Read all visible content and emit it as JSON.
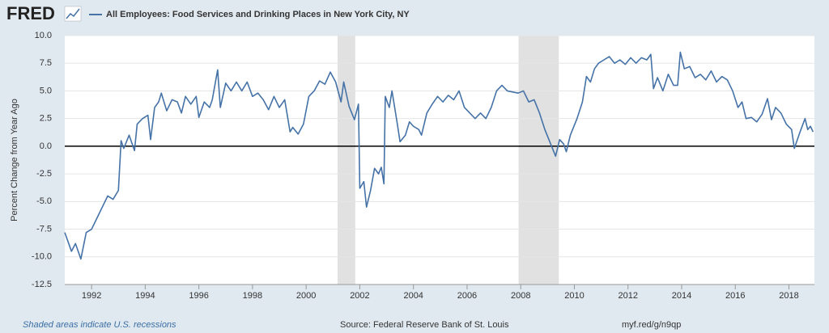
{
  "chart_data": {
    "type": "line",
    "brand": "FRED",
    "y_label": "Percent Change from Year Ago",
    "note": "Shaded areas indicate U.S. recessions",
    "source": "Source: Federal Reserve Bank of St. Louis",
    "link": "myf.red/g/n9qp",
    "xlim": [
      1991.0,
      2018.95
    ],
    "ylim": [
      -12.5,
      10
    ],
    "xticks": [
      1992,
      1994,
      1996,
      1998,
      2000,
      2002,
      2004,
      2006,
      2008,
      2010,
      2012,
      2014,
      2016,
      2018
    ],
    "yticks": [
      -12.5,
      {
        "value": -10,
        "label": "-10.0"
      },
      -7.5,
      {
        "value": -5,
        "label": "-5.0"
      },
      -2.5,
      {
        "value": 0,
        "label": "0.0"
      },
      2.5,
      {
        "value": 5,
        "label": "5.0"
      },
      7.5,
      {
        "value": 10,
        "label": "10.0"
      }
    ],
    "grid": true,
    "recessions": [
      [
        2001.17,
        2001.83
      ],
      [
        2007.92,
        2009.42
      ]
    ],
    "recession_color": "#e1e1e1",
    "x": [
      1991.0,
      1991.25,
      1991.4,
      1991.6,
      1991.8,
      1992.0,
      1992.2,
      1992.4,
      1992.6,
      1992.8,
      1993.0,
      1993.1,
      1993.2,
      1993.4,
      1993.6,
      1993.7,
      1993.9,
      1994.1,
      1994.2,
      1994.35,
      1994.5,
      1994.6,
      1994.8,
      1995.0,
      1995.2,
      1995.35,
      1995.5,
      1995.7,
      1995.9,
      1996.0,
      1996.2,
      1996.4,
      1996.5,
      1996.7,
      1996.8,
      1997.0,
      1997.2,
      1997.4,
      1997.6,
      1997.8,
      1998.0,
      1998.2,
      1998.4,
      1998.6,
      1998.8,
      1999.0,
      1999.2,
      1999.4,
      1999.5,
      1999.7,
      1999.9,
      2000.1,
      2000.3,
      2000.5,
      2000.7,
      2000.9,
      2001.1,
      2001.3,
      2001.4,
      2001.6,
      2001.8,
      2001.95,
      2002.0,
      2002.15,
      2002.25,
      2002.4,
      2002.55,
      2002.7,
      2002.8,
      2002.9,
      2002.95,
      2003.1,
      2003.2,
      2003.4,
      2003.5,
      2003.7,
      2003.85,
      2004.0,
      2004.2,
      2004.3,
      2004.5,
      2004.7,
      2004.9,
      2005.1,
      2005.3,
      2005.5,
      2005.7,
      2005.9,
      2006.1,
      2006.3,
      2006.5,
      2006.7,
      2006.9,
      2007.1,
      2007.3,
      2007.5,
      2007.7,
      2007.9,
      2008.1,
      2008.3,
      2008.5,
      2008.7,
      2008.9,
      2009.1,
      2009.3,
      2009.45,
      2009.6,
      2009.7,
      2009.85,
      2010.1,
      2010.3,
      2010.45,
      2010.6,
      2010.75,
      2010.9,
      2011.1,
      2011.3,
      2011.5,
      2011.7,
      2011.9,
      2012.1,
      2012.3,
      2012.5,
      2012.7,
      2012.85,
      2012.95,
      2013.1,
      2013.3,
      2013.5,
      2013.7,
      2013.85,
      2013.95,
      2014.1,
      2014.3,
      2014.5,
      2014.7,
      2014.9,
      2015.1,
      2015.3,
      2015.5,
      2015.7,
      2015.9,
      2016.1,
      2016.25,
      2016.4,
      2016.6,
      2016.8,
      2017.0,
      2017.2,
      2017.35,
      2017.5,
      2017.7,
      2017.9,
      2018.1,
      2018.2,
      2018.4,
      2018.6,
      2018.7,
      2018.8,
      2018.9
    ],
    "series": [
      {
        "name": "All Employees: Food Services and Drinking Places in New York City, NY",
        "color": "#4572a7",
        "values": [
          -7.8,
          -9.5,
          -8.8,
          -10.2,
          -7.8,
          -7.5,
          -6.5,
          -5.5,
          -4.5,
          -4.8,
          -4.0,
          0.5,
          -0.2,
          1.0,
          -0.4,
          2.0,
          2.5,
          2.8,
          0.6,
          3.5,
          4.0,
          4.8,
          3.2,
          4.2,
          4.0,
          3.0,
          4.5,
          3.8,
          4.5,
          2.6,
          4.0,
          3.5,
          4.2,
          6.9,
          3.5,
          5.7,
          5.0,
          5.8,
          5.0,
          5.8,
          4.5,
          4.8,
          4.2,
          3.3,
          4.5,
          3.5,
          4.2,
          1.3,
          1.7,
          1.1,
          2.0,
          4.5,
          5.0,
          5.9,
          5.6,
          6.7,
          5.8,
          4.0,
          5.8,
          3.6,
          2.4,
          3.8,
          -3.8,
          -3.2,
          -5.5,
          -4.0,
          -2.0,
          -2.5,
          -1.9,
          -3.4,
          4.5,
          3.5,
          5.0,
          2.0,
          0.4,
          1.0,
          2.2,
          1.8,
          1.5,
          1.0,
          3.0,
          3.8,
          4.5,
          4.0,
          4.6,
          4.2,
          5.0,
          3.5,
          3.0,
          2.5,
          3.0,
          2.5,
          3.5,
          5.0,
          5.5,
          5.0,
          4.9,
          4.8,
          5.0,
          4.0,
          4.2,
          3.0,
          1.5,
          0.3,
          -0.9,
          0.6,
          0.2,
          -0.5,
          1.0,
          2.5,
          4.0,
          6.3,
          5.8,
          7.0,
          7.5,
          7.8,
          8.1,
          7.5,
          7.8,
          7.4,
          8.0,
          7.5,
          8.0,
          7.8,
          8.3,
          5.2,
          6.2,
          5.0,
          6.5,
          5.5,
          5.5,
          8.5,
          7.0,
          7.2,
          6.2,
          6.5,
          6.0,
          6.8,
          5.8,
          6.3,
          6.0,
          5.0,
          3.5,
          4.0,
          2.5,
          2.6,
          2.2,
          2.9,
          4.3,
          2.4,
          3.5,
          3.0,
          2.0,
          1.5,
          -0.2,
          1.2,
          2.5,
          1.5,
          1.8,
          1.3
        ]
      }
    ]
  }
}
